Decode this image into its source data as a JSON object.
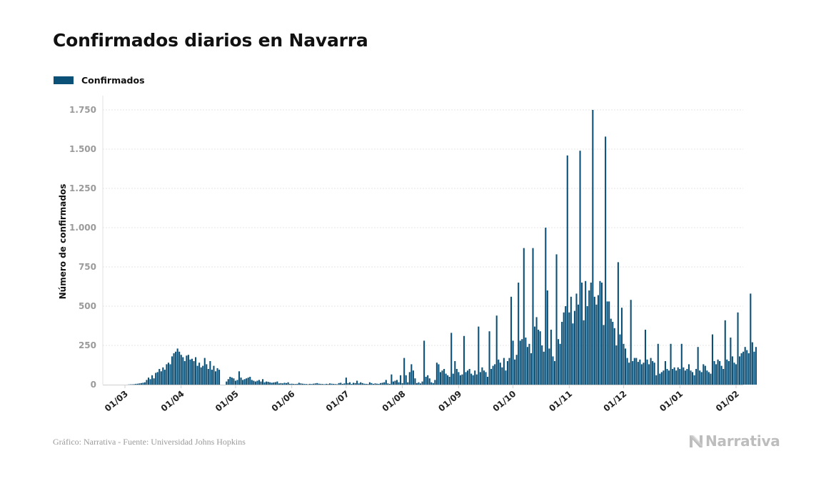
{
  "header": {
    "title": "Confirmados diarios en Navarra"
  },
  "legend": {
    "label": "Confirmados",
    "color": "#0b5077"
  },
  "footer": {
    "source": "Gráfico: Narrativa - Fuente: Universidad Johns Hopkins",
    "brand": "Narrativa",
    "brand_icon": "narrativa-logo-icon"
  },
  "chart_data": {
    "type": "bar",
    "title": "Confirmados diarios en Navarra",
    "ylabel": "Número de confirmados",
    "xlabel": "",
    "grid": true,
    "legend_position": "top-left",
    "ylim": [
      0,
      1750
    ],
    "yticks": [
      0,
      250,
      500,
      750,
      1000,
      1250,
      1500,
      1750
    ],
    "ytick_labels": [
      "0",
      "250",
      "500",
      "750",
      "1.000",
      "1.250",
      "1.500",
      "1.750"
    ],
    "xticks": [
      {
        "day": 0,
        "label": "01/03"
      },
      {
        "day": 31,
        "label": "01/04"
      },
      {
        "day": 61,
        "label": "01/05"
      },
      {
        "day": 92,
        "label": "01/06"
      },
      {
        "day": 122,
        "label": "01/07"
      },
      {
        "day": 153,
        "label": "01/08"
      },
      {
        "day": 184,
        "label": "01/09"
      },
      {
        "day": 214,
        "label": "01/10"
      },
      {
        "day": 245,
        "label": "01/11"
      },
      {
        "day": 275,
        "label": "01/12"
      },
      {
        "day": 306,
        "label": "01/01"
      },
      {
        "day": 337,
        "label": "01/02"
      }
    ],
    "x_range_days": [
      -5,
      342
    ],
    "series": [
      {
        "name": "Confirmados",
        "color": "#0b5077",
        "start_date": "2020-03-01",
        "values": [
          0,
          0,
          1,
          2,
          2,
          3,
          5,
          6,
          8,
          10,
          12,
          15,
          30,
          45,
          35,
          60,
          40,
          75,
          80,
          100,
          85,
          110,
          95,
          130,
          140,
          130,
          180,
          200,
          210,
          230,
          210,
          190,
          175,
          150,
          185,
          190,
          160,
          165,
          150,
          175,
          120,
          140,
          110,
          120,
          170,
          130,
          100,
          150,
          95,
          120,
          85,
          105,
          95,
          0,
          0,
          0,
          20,
          35,
          50,
          45,
          40,
          25,
          30,
          85,
          45,
          30,
          35,
          40,
          45,
          50,
          30,
          25,
          20,
          25,
          30,
          20,
          35,
          15,
          20,
          18,
          15,
          12,
          14,
          16,
          20,
          8,
          10,
          8,
          12,
          10,
          15,
          5,
          6,
          5,
          4,
          5,
          12,
          8,
          6,
          5,
          4,
          3,
          5,
          4,
          6,
          8,
          10,
          6,
          5,
          4,
          3,
          5,
          4,
          8,
          6,
          5,
          4,
          3,
          10,
          12,
          5,
          8,
          45,
          10,
          15,
          5,
          12,
          10,
          25,
          8,
          15,
          10,
          6,
          5,
          4,
          15,
          10,
          5,
          8,
          6,
          5,
          10,
          12,
          15,
          30,
          8,
          5,
          65,
          20,
          25,
          30,
          15,
          60,
          10,
          170,
          60,
          15,
          80,
          130,
          90,
          40,
          10,
          15,
          8,
          20,
          280,
          50,
          60,
          40,
          15,
          10,
          30,
          140,
          130,
          80,
          90,
          100,
          70,
          60,
          50,
          330,
          70,
          150,
          100,
          80,
          60,
          65,
          310,
          80,
          90,
          100,
          70,
          60,
          90,
          65,
          370,
          80,
          110,
          90,
          80,
          50,
          340,
          100,
          120,
          130,
          440,
          160,
          140,
          110,
          170,
          90,
          150,
          170,
          560,
          280,
          160,
          190,
          650,
          280,
          290,
          870,
          300,
          240,
          260,
          200,
          870,
          370,
          430,
          350,
          340,
          250,
          210,
          1000,
          600,
          230,
          350,
          180,
          150,
          830,
          290,
          260,
          400,
          460,
          500,
          1460,
          460,
          560,
          390,
          470,
          580,
          510,
          1490,
          650,
          410,
          660,
          500,
          600,
          650,
          1750,
          560,
          510,
          570,
          660,
          650,
          380,
          1580,
          530,
          530,
          420,
          400,
          360,
          250,
          780,
          320,
          490,
          260,
          230,
          170,
          140,
          540,
          150,
          170,
          170,
          145,
          160,
          130,
          140,
          350,
          160,
          130,
          170,
          150,
          140,
          60,
          260,
          70,
          80,
          90,
          150,
          100,
          90,
          260,
          100,
          110,
          90,
          110,
          100,
          260,
          110,
          90,
          100,
          130,
          90,
          80,
          60,
          100,
          240,
          90,
          80,
          130,
          120,
          90,
          80,
          70,
          320,
          150,
          130,
          160,
          150,
          120,
          100,
          410,
          160,
          150,
          300,
          180,
          140,
          130,
          460,
          180,
          200,
          210,
          240,
          220,
          200,
          580,
          270,
          210,
          240
        ]
      }
    ]
  }
}
